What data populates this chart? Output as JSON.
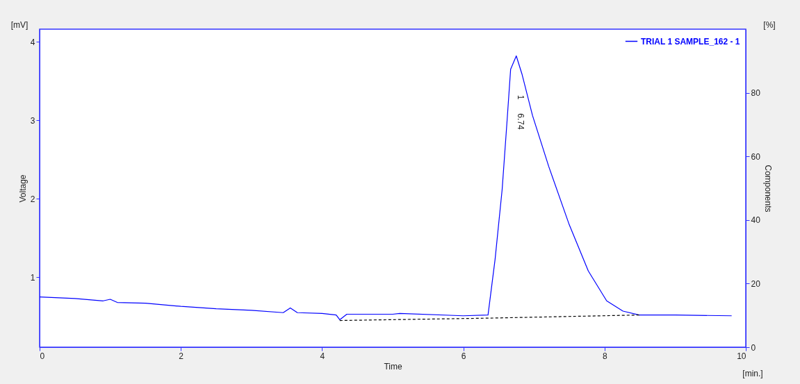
{
  "chart_data": {
    "type": "line",
    "xlabel": "Time",
    "ylabel": "Voltage",
    "y2label": "Components",
    "xlim": [
      0,
      10
    ],
    "xticks": [
      0,
      2,
      4,
      6,
      8,
      10
    ],
    "ylim": [
      0.11,
      4.16
    ],
    "yticks": [
      1,
      2,
      3,
      4
    ],
    "y2lim": [
      0,
      100
    ],
    "y2ticks": [
      0,
      20,
      40,
      60,
      80
    ],
    "grid": false,
    "legend": "top right",
    "marker": "none",
    "series": [
      {
        "name": "TRIAL 1 SAMPLE_162 - 1",
        "color": "#0000ff",
        "line_style": "solid",
        "x": [
          0,
          0.5,
          0.9,
          1.0,
          1.1,
          1.5,
          2,
          2.5,
          3,
          3.45,
          3.55,
          3.65,
          4.0,
          4.2,
          4.25,
          4.35,
          5,
          5.1,
          6,
          6.35,
          6.45,
          6.55,
          6.62,
          6.67,
          6.75,
          6.83,
          6.98,
          7.21,
          7.5,
          7.77,
          8.03,
          8.26,
          8.49,
          9,
          9.8
        ],
        "values": [
          0.75,
          0.73,
          0.7,
          0.72,
          0.68,
          0.67,
          0.63,
          0.6,
          0.58,
          0.55,
          0.61,
          0.55,
          0.54,
          0.52,
          0.46,
          0.53,
          0.53,
          0.54,
          0.51,
          0.52,
          1.23,
          2.12,
          3.0,
          3.65,
          3.82,
          3.59,
          3.06,
          2.41,
          1.67,
          1.08,
          0.7,
          0.57,
          0.52,
          0.52,
          0.51
        ]
      },
      {
        "color": "#000000",
        "line_style": "dashed",
        "x": [
          4.25,
          6.35,
          8.49
        ],
        "values": [
          0.45,
          0.48,
          0.52
        ]
      }
    ],
    "annotations": [
      "1",
      "6.74",
      "[mV]",
      "[%]",
      "[min.]"
    ]
  }
}
